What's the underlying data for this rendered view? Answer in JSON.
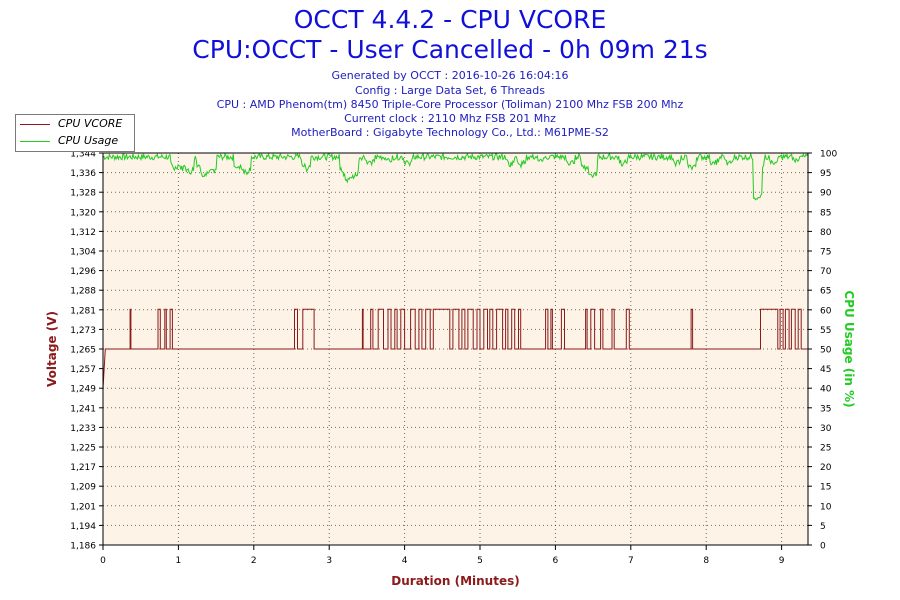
{
  "header": {
    "title": "OCCT 4.4.2 - CPU VCORE",
    "subtitle": "CPU:OCCT - User Cancelled - 0h 09m 21s",
    "info_lines": [
      "Generated by OCCT : 2016-10-26 16:04:16",
      "Config : Large Data Set, 6 Threads",
      "CPU : AMD Phenom(tm) 8450 Triple-Core Processor (Toliman) 2100 Mhz FSB 200 Mhz",
      "Current clock : 2110 Mhz FSB 201 Mhz",
      "MotherBoard : Gigabyte Technology Co., Ltd.: M61PME-S2"
    ]
  },
  "legend": {
    "items": [
      {
        "label": "CPU VCORE",
        "color": "#8b1a1a"
      },
      {
        "label": "CPU Usage",
        "color": "#22cc22"
      }
    ]
  },
  "colors": {
    "plot_background": "#fdf3e6",
    "grid": "#000000",
    "voltage": "#8b1a1a",
    "usage": "#22cc22",
    "axis_title_left": "#8b1a1a",
    "axis_title_right": "#22cc22",
    "axis_title_bottom": "#8b1a1a",
    "title": "#1010d8"
  },
  "chart_data": {
    "type": "line",
    "xlabel": "Duration (Minutes)",
    "ylabel_left": "Voltage (V)",
    "ylabel_right": "CPU Usage (in %)",
    "xlim": [
      0,
      9.35
    ],
    "ylim_left": [
      1.186,
      1.344
    ],
    "ylim_right": [
      0,
      100
    ],
    "x_ticks": [
      "0",
      "1",
      "2",
      "3",
      "4",
      "5",
      "6",
      "7",
      "8",
      "9"
    ],
    "y_left_ticks": [
      "1,186",
      "1,194",
      "1,201",
      "1,209",
      "1,217",
      "1,225",
      "1,233",
      "1,241",
      "1,249",
      "1,257",
      "1,265",
      "1,273",
      "1,281",
      "1,288",
      "1,296",
      "1,304",
      "1,312",
      "1,320",
      "1,328",
      "1,336",
      "1,344"
    ],
    "y_right_ticks": [
      "0",
      "5",
      "10",
      "15",
      "20",
      "25",
      "30",
      "35",
      "40",
      "45",
      "50",
      "55",
      "60",
      "65",
      "70",
      "75",
      "80",
      "85",
      "90",
      "95",
      "100"
    ],
    "grid": true,
    "legend_position": "top-left",
    "series": [
      {
        "name": "CPU VCORE",
        "baseline": 1.265,
        "high": 1.281,
        "start": [
          [
            0,
            1.249
          ],
          [
            0.03,
            1.265
          ]
        ],
        "high_intervals": [
          [
            0.36,
            0.37
          ],
          [
            0.73,
            0.76
          ],
          [
            0.82,
            0.84
          ],
          [
            0.89,
            0.92
          ],
          [
            2.54,
            2.58
          ],
          [
            2.65,
            2.8
          ],
          [
            3.44,
            3.45
          ],
          [
            3.55,
            3.58
          ],
          [
            3.65,
            3.72
          ],
          [
            3.78,
            3.82
          ],
          [
            3.87,
            3.9
          ],
          [
            3.95,
            4.0
          ],
          [
            4.08,
            4.14
          ],
          [
            4.19,
            4.23
          ],
          [
            4.28,
            4.34
          ],
          [
            4.38,
            4.6
          ],
          [
            4.64,
            4.72
          ],
          [
            4.76,
            4.8
          ],
          [
            4.84,
            4.91
          ],
          [
            4.96,
            5.0
          ],
          [
            5.05,
            5.1
          ],
          [
            5.13,
            5.17
          ],
          [
            5.22,
            5.3
          ],
          [
            5.34,
            5.37
          ],
          [
            5.42,
            5.46
          ],
          [
            5.51,
            5.54
          ],
          [
            5.87,
            5.9
          ],
          [
            5.94,
            5.96
          ],
          [
            6.08,
            6.12
          ],
          [
            6.4,
            6.42
          ],
          [
            6.47,
            6.52
          ],
          [
            6.6,
            6.63
          ],
          [
            6.75,
            6.78
          ],
          [
            6.94,
            6.98
          ],
          [
            7.8,
            7.82
          ],
          [
            8.72,
            8.95
          ],
          [
            8.98,
            9.02
          ],
          [
            9.05,
            9.1
          ],
          [
            9.13,
            9.18
          ],
          [
            9.22,
            9.26
          ]
        ]
      },
      {
        "name": "CPU Usage",
        "typical": 99,
        "dips": [
          [
            0.95,
            96
          ],
          [
            1.05,
            96
          ],
          [
            1.15,
            95
          ],
          [
            1.3,
            96
          ],
          [
            1.35,
            94
          ],
          [
            1.45,
            95
          ],
          [
            1.8,
            96
          ],
          [
            1.9,
            95
          ],
          [
            2.7,
            96
          ],
          [
            3.2,
            95
          ],
          [
            3.25,
            93
          ],
          [
            3.33,
            94
          ],
          [
            3.55,
            97
          ],
          [
            3.8,
            98
          ],
          [
            4.05,
            97
          ],
          [
            5.4,
            97
          ],
          [
            5.55,
            97
          ],
          [
            5.8,
            98
          ],
          [
            6.2,
            97
          ],
          [
            6.4,
            96
          ],
          [
            6.5,
            94
          ],
          [
            6.9,
            97
          ],
          [
            7.6,
            97
          ],
          [
            7.8,
            96
          ],
          [
            8.1,
            97
          ],
          [
            8.3,
            97
          ],
          [
            8.68,
            88
          ],
          [
            8.7,
            96
          ],
          [
            8.9,
            97
          ],
          [
            9.2,
            98
          ]
        ]
      }
    ]
  }
}
